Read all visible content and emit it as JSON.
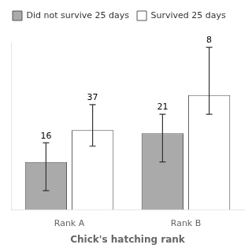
{
  "chart_data": {
    "type": "bar",
    "xlabel": "Chick's hatching rank",
    "categories": [
      "Rank A",
      "Rank B"
    ],
    "series": [
      {
        "name": "Did not survive 25 days",
        "color": "#aaaaaa",
        "values": [
          30,
          48
        ],
        "yerr_lower": [
          18,
          18
        ],
        "yerr_upper": [
          12,
          12
        ],
        "n": [
          16,
          21
        ]
      },
      {
        "name": "Survived 25 days",
        "color": "#ffffff",
        "values": [
          50,
          72
        ],
        "yerr_lower": [
          10,
          12
        ],
        "yerr_upper": [
          16,
          30
        ],
        "n": [
          37,
          8
        ]
      }
    ],
    "ylim": [
      0,
      105
    ],
    "tick_labels": "x",
    "grid": false,
    "legend": "upper left"
  }
}
